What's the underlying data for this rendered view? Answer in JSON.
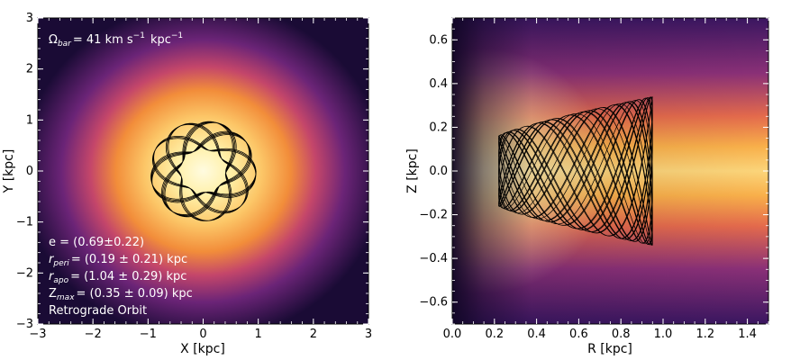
{
  "chart_data": [
    {
      "type": "heatmap",
      "panel": "left",
      "xlabel": "X [kpc]",
      "ylabel": "Y [kpc]",
      "xlim": [
        -3,
        3
      ],
      "ylim": [
        -3,
        3
      ],
      "xticks": [
        "−3",
        "−2",
        "−1",
        "0",
        "1",
        "2",
        "3"
      ],
      "yticks": [
        "3",
        "2",
        "1",
        "0",
        "−1",
        "−2",
        "−3"
      ],
      "omega_bar": "Ω",
      "omega_sub": "bar",
      "omega_value": "= 41 km s",
      "omega_sup1": "−1",
      "omega_unit": "kpc",
      "omega_sup2": "−1",
      "ecc": "e = (0.69±0.22)",
      "rperi": "r",
      "rperi_sub": "peri",
      "rperi_value": "= (0.19 ± 0.21) kpc",
      "rapo": "r",
      "rapo_sub": "apo",
      "rapo_value": "= (1.04 ± 0.29) kpc",
      "zmax": "Z",
      "zmax_sub": "max",
      "zmax_value": "= (0.35 ± 0.09) kpc",
      "orbit_type": "Retrograde Orbit",
      "orbit_radius_range": [
        0.19,
        1.04
      ]
    },
    {
      "type": "heatmap",
      "panel": "right",
      "xlabel": "R [kpc]",
      "ylabel": "Z [kpc]",
      "xlim": [
        0.0,
        1.5
      ],
      "ylim": [
        -0.7,
        0.7
      ],
      "xticks": [
        "0.0",
        "0.2",
        "0.4",
        "0.6",
        "0.8",
        "1.0",
        "1.2",
        "1.4"
      ],
      "yticks": [
        "0.6",
        "0.4",
        "0.2",
        "0.0",
        "−0.2",
        "−0.4",
        "−0.6"
      ],
      "orbit_r_range": [
        0.22,
        0.95
      ],
      "orbit_z_range": [
        -0.34,
        0.34
      ]
    }
  ],
  "colors": {
    "bright": "#fff3b0",
    "mid": "#f8a23a",
    "dark": "#1a0b35",
    "orbit": "#000000",
    "annotation": "#ffffff"
  }
}
